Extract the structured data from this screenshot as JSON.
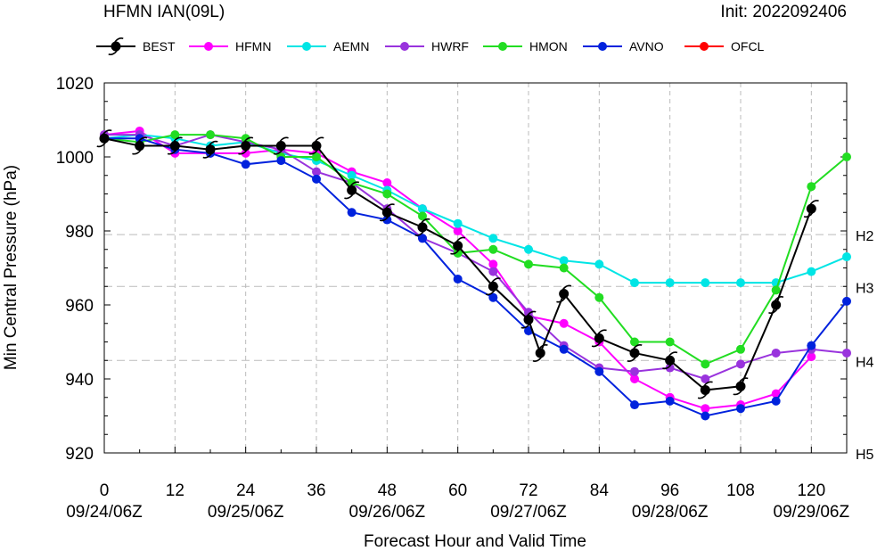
{
  "header": {
    "title": "HFMN IAN(09L)",
    "init": "Init: 2022092406"
  },
  "chart_data": {
    "type": "line",
    "title": "HFMN IAN(09L)",
    "xlabel": "Forecast Hour and Valid Time",
    "ylabel": "Min Central Pressure (hPa)",
    "xlim": [
      0,
      126
    ],
    "ylim": [
      920,
      1020
    ],
    "xticks": [
      0,
      12,
      24,
      36,
      48,
      60,
      72,
      84,
      96,
      108,
      120
    ],
    "yticks": [
      920,
      940,
      960,
      980,
      1000,
      1020
    ],
    "date_labels": [
      {
        "x": 0,
        "label": "09/24/06Z"
      },
      {
        "x": 24,
        "label": "09/25/06Z"
      },
      {
        "x": 48,
        "label": "09/26/06Z"
      },
      {
        "x": 72,
        "label": "09/27/06Z"
      },
      {
        "x": 96,
        "label": "09/28/06Z"
      },
      {
        "x": 120,
        "label": "09/29/06Z"
      }
    ],
    "reference_lines": [
      {
        "label": "H2",
        "y": 979
      },
      {
        "label": "H3",
        "y": 965
      },
      {
        "label": "H4",
        "y": 945
      },
      {
        "label": "H5",
        "y": 920
      }
    ],
    "grid": true,
    "legend_position": "top",
    "series": [
      {
        "name": "BEST",
        "color": "#000000",
        "marker": "hurricane-symbol",
        "x": [
          0,
          6,
          12,
          18,
          24,
          30,
          36,
          42,
          48,
          54,
          60,
          66,
          72,
          74,
          78,
          84,
          90,
          96,
          102,
          108,
          114,
          120
        ],
        "y": [
          1005,
          1003,
          1003,
          1002,
          1003,
          1003,
          1003,
          991,
          985,
          981,
          976,
          965,
          956,
          947,
          963,
          951,
          947,
          945,
          937,
          938,
          960,
          986
        ]
      },
      {
        "name": "HFMN",
        "color": "#ff00ff",
        "marker": "circle",
        "x": [
          0,
          6,
          12,
          18,
          24,
          30,
          36,
          42,
          48,
          54,
          60,
          66,
          72,
          78,
          84,
          90,
          96,
          102,
          108,
          114,
          120
        ],
        "y": [
          1006,
          1007,
          1001,
          1001,
          1001,
          1002,
          1001,
          996,
          993,
          986,
          980,
          971,
          957,
          955,
          950,
          940,
          935,
          932,
          933,
          936,
          946
        ]
      },
      {
        "name": "AEMN",
        "color": "#00e5e5",
        "marker": "circle",
        "x": [
          0,
          6,
          12,
          18,
          24,
          30,
          36,
          42,
          48,
          54,
          60,
          66,
          72,
          78,
          84,
          90,
          96,
          102,
          108,
          114,
          120,
          126
        ],
        "y": [
          1005,
          1006,
          1005,
          1003,
          1004,
          1001,
          999,
          995,
          991,
          986,
          982,
          978,
          975,
          972,
          971,
          966,
          966,
          966,
          966,
          966,
          969,
          973
        ]
      },
      {
        "name": "HWRF",
        "color": "#9933dd",
        "marker": "circle",
        "x": [
          0,
          6,
          12,
          18,
          24,
          30,
          36,
          42,
          48,
          54,
          60,
          66,
          72,
          78,
          84,
          90,
          96,
          102,
          108,
          114,
          120,
          126
        ],
        "y": [
          1006,
          1006,
          1003,
          1006,
          1004,
          1002,
          996,
          993,
          986,
          978,
          974,
          969,
          958,
          949,
          943,
          942,
          943,
          940,
          944,
          947,
          948,
          947
        ]
      },
      {
        "name": "HMON",
        "color": "#22dd22",
        "marker": "circle",
        "x": [
          0,
          6,
          12,
          18,
          24,
          30,
          36,
          42,
          48,
          54,
          60,
          66,
          72,
          78,
          84,
          90,
          96,
          102,
          108,
          114,
          120,
          126
        ],
        "y": [
          1005,
          1004,
          1006,
          1006,
          1005,
          1000,
          1000,
          993,
          990,
          984,
          974,
          975,
          971,
          970,
          962,
          950,
          950,
          944,
          948,
          964,
          992,
          1000
        ]
      },
      {
        "name": "AVNO",
        "color": "#0022dd",
        "marker": "circle",
        "x": [
          0,
          6,
          12,
          18,
          24,
          30,
          36,
          42,
          48,
          54,
          60,
          66,
          72,
          78,
          84,
          90,
          96,
          102,
          108,
          114,
          120,
          126
        ],
        "y": [
          1005,
          1005,
          1002,
          1001,
          998,
          999,
          994,
          985,
          983,
          978,
          967,
          962,
          953,
          948,
          942,
          933,
          934,
          930,
          932,
          934,
          949,
          961
        ]
      },
      {
        "name": "OFCL",
        "color": "#ff0000",
        "marker": "circle",
        "x": [],
        "y": []
      }
    ]
  }
}
